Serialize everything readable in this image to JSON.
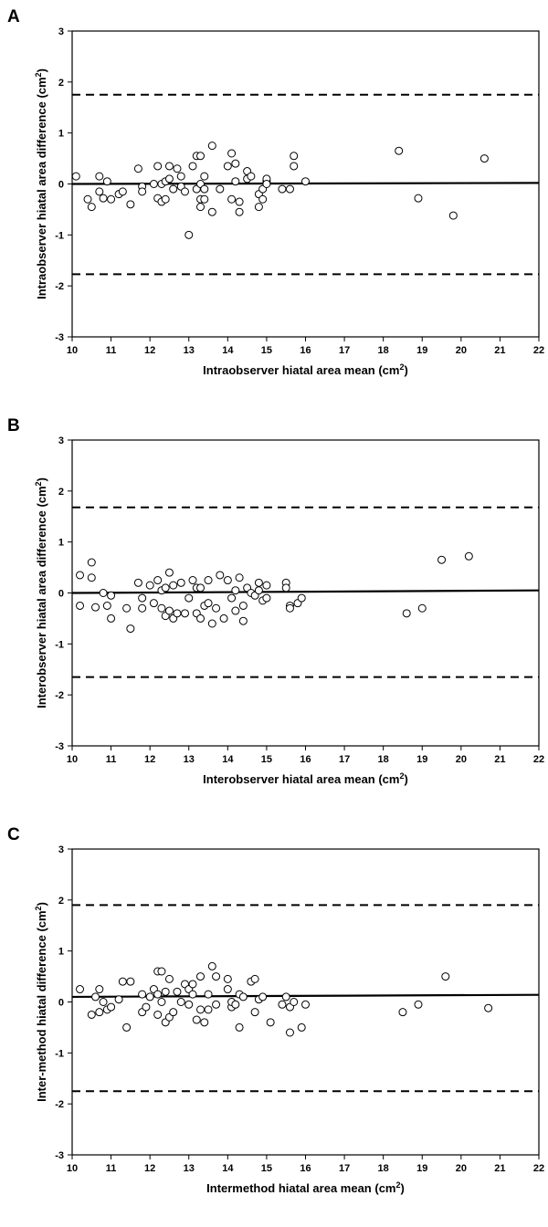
{
  "chart_data": [
    {
      "type": "scatter",
      "panel_label": "A",
      "xlabel": "Intraobserver hiatal area mean (cm",
      "ylabel": "Intraobserver hiatal area difference (cm",
      "unit_sup": "2",
      "unit_close": ")",
      "xlim": [
        10,
        22
      ],
      "ylim": [
        -3,
        3
      ],
      "x_ticks": [
        "10",
        "11",
        "12",
        "13",
        "14",
        "15",
        "16",
        "17",
        "18",
        "19",
        "20",
        "21",
        "22"
      ],
      "y_ticks": [
        "3",
        "2",
        "1",
        "0",
        "-1",
        "-2",
        "-3"
      ],
      "mean_line": [
        [
          10,
          0.0
        ],
        [
          22,
          0.02
        ]
      ],
      "upper_limit": 1.75,
      "lower_limit": -1.77,
      "points": [
        [
          10.1,
          0.15
        ],
        [
          10.4,
          -0.3
        ],
        [
          10.5,
          -0.45
        ],
        [
          10.7,
          -0.15
        ],
        [
          10.7,
          0.15
        ],
        [
          10.8,
          -0.28
        ],
        [
          10.9,
          0.05
        ],
        [
          11.0,
          -0.3
        ],
        [
          11.2,
          -0.2
        ],
        [
          11.3,
          -0.15
        ],
        [
          11.5,
          -0.4
        ],
        [
          11.7,
          0.3
        ],
        [
          11.8,
          -0.05
        ],
        [
          11.8,
          -0.15
        ],
        [
          12.1,
          0.0
        ],
        [
          12.2,
          0.35
        ],
        [
          12.2,
          -0.28
        ],
        [
          12.3,
          -0.35
        ],
        [
          12.3,
          0.0
        ],
        [
          12.4,
          0.05
        ],
        [
          12.4,
          -0.3
        ],
        [
          12.5,
          0.35
        ],
        [
          12.5,
          0.1
        ],
        [
          12.6,
          -0.1
        ],
        [
          12.7,
          0.3
        ],
        [
          12.8,
          -0.05
        ],
        [
          12.8,
          0.15
        ],
        [
          12.9,
          -0.15
        ],
        [
          13.0,
          -1.0
        ],
        [
          13.1,
          0.35
        ],
        [
          13.2,
          0.55
        ],
        [
          13.2,
          -0.1
        ],
        [
          13.3,
          0.55
        ],
        [
          13.3,
          -0.3
        ],
        [
          13.3,
          -0.45
        ],
        [
          13.3,
          0.0
        ],
        [
          13.4,
          0.15
        ],
        [
          13.4,
          -0.3
        ],
        [
          13.4,
          -0.1
        ],
        [
          13.6,
          0.75
        ],
        [
          13.6,
          -0.55
        ],
        [
          13.8,
          -0.1
        ],
        [
          14.0,
          0.35
        ],
        [
          14.1,
          0.6
        ],
        [
          14.1,
          -0.3
        ],
        [
          14.2,
          0.05
        ],
        [
          14.2,
          0.4
        ],
        [
          14.3,
          -0.35
        ],
        [
          14.3,
          -0.55
        ],
        [
          14.5,
          0.1
        ],
        [
          14.5,
          0.25
        ],
        [
          14.6,
          0.15
        ],
        [
          14.8,
          -0.2
        ],
        [
          14.8,
          -0.45
        ],
        [
          14.9,
          -0.3
        ],
        [
          14.9,
          -0.1
        ],
        [
          15.0,
          0.05
        ],
        [
          15.0,
          0.1
        ],
        [
          15.0,
          0.0
        ],
        [
          15.4,
          -0.1
        ],
        [
          15.6,
          -0.1
        ],
        [
          15.7,
          0.35
        ],
        [
          15.7,
          0.55
        ],
        [
          16.0,
          0.05
        ],
        [
          18.4,
          0.65
        ],
        [
          18.9,
          -0.28
        ],
        [
          19.8,
          -0.62
        ],
        [
          20.6,
          0.5
        ]
      ]
    },
    {
      "type": "scatter",
      "panel_label": "B",
      "xlabel": "Interobserver hiatal area mean (cm",
      "ylabel": "Interobserver hiatal area difference (cm",
      "unit_sup": "2",
      "unit_close": ")",
      "xlim": [
        10,
        22
      ],
      "ylim": [
        -3,
        3
      ],
      "x_ticks": [
        "10",
        "11",
        "12",
        "13",
        "14",
        "15",
        "16",
        "17",
        "18",
        "19",
        "20",
        "21",
        "22"
      ],
      "y_ticks": [
        "3",
        "2",
        "1",
        "0",
        "-1",
        "-2",
        "-3"
      ],
      "mean_line": [
        [
          10,
          0.0
        ],
        [
          22,
          0.05
        ]
      ],
      "upper_limit": 1.68,
      "lower_limit": -1.65,
      "points": [
        [
          10.2,
          0.35
        ],
        [
          10.2,
          -0.25
        ],
        [
          10.5,
          0.3
        ],
        [
          10.5,
          0.6
        ],
        [
          10.6,
          -0.28
        ],
        [
          10.8,
          0.0
        ],
        [
          10.9,
          -0.25
        ],
        [
          11.0,
          -0.5
        ],
        [
          11.0,
          -0.05
        ],
        [
          11.4,
          -0.3
        ],
        [
          11.5,
          -0.7
        ],
        [
          11.7,
          0.2
        ],
        [
          11.8,
          -0.1
        ],
        [
          11.8,
          -0.3
        ],
        [
          12.0,
          0.15
        ],
        [
          12.1,
          -0.2
        ],
        [
          12.2,
          0.25
        ],
        [
          12.3,
          0.05
        ],
        [
          12.3,
          -0.3
        ],
        [
          12.4,
          -0.45
        ],
        [
          12.4,
          0.1
        ],
        [
          12.5,
          0.4
        ],
        [
          12.5,
          -0.35
        ],
        [
          12.6,
          -0.5
        ],
        [
          12.6,
          0.15
        ],
        [
          12.7,
          -0.4
        ],
        [
          12.8,
          0.2
        ],
        [
          12.9,
          -0.4
        ],
        [
          13.0,
          -0.1
        ],
        [
          13.1,
          0.25
        ],
        [
          13.2,
          -0.4
        ],
        [
          13.2,
          0.1
        ],
        [
          13.3,
          0.1
        ],
        [
          13.3,
          -0.5
        ],
        [
          13.4,
          -0.25
        ],
        [
          13.5,
          -0.2
        ],
        [
          13.5,
          0.25
        ],
        [
          13.6,
          -0.6
        ],
        [
          13.7,
          -0.3
        ],
        [
          13.8,
          0.35
        ],
        [
          13.9,
          -0.5
        ],
        [
          14.0,
          0.25
        ],
        [
          14.1,
          -0.1
        ],
        [
          14.2,
          0.05
        ],
        [
          14.2,
          -0.35
        ],
        [
          14.3,
          0.3
        ],
        [
          14.4,
          -0.25
        ],
        [
          14.4,
          -0.55
        ],
        [
          14.5,
          0.1
        ],
        [
          14.6,
          0.0
        ],
        [
          14.7,
          -0.05
        ],
        [
          14.8,
          0.2
        ],
        [
          14.8,
          0.05
        ],
        [
          14.9,
          -0.15
        ],
        [
          15.0,
          0.15
        ],
        [
          15.0,
          -0.1
        ],
        [
          15.5,
          0.2
        ],
        [
          15.5,
          0.1
        ],
        [
          15.6,
          -0.25
        ],
        [
          15.6,
          -0.3
        ],
        [
          15.8,
          -0.2
        ],
        [
          15.9,
          -0.1
        ],
        [
          18.6,
          -0.4
        ],
        [
          19.0,
          -0.3
        ],
        [
          19.5,
          0.65
        ],
        [
          20.2,
          0.72
        ]
      ]
    },
    {
      "type": "scatter",
      "panel_label": "C",
      "xlabel": "Intermethod hiatal area mean (cm",
      "ylabel": "Inter-method  hiatal difference (cm",
      "unit_sup": "2",
      "unit_close": ")",
      "xlim": [
        10,
        22
      ],
      "ylim": [
        -3,
        3
      ],
      "x_ticks": [
        "10",
        "11",
        "12",
        "13",
        "14",
        "15",
        "16",
        "17",
        "18",
        "19",
        "20",
        "21",
        "22"
      ],
      "y_ticks": [
        "3",
        "2",
        "1",
        "0",
        "-1",
        "-2",
        "-3"
      ],
      "mean_line": [
        [
          10,
          0.1
        ],
        [
          22,
          0.14
        ]
      ],
      "upper_limit": 1.9,
      "lower_limit": -1.75,
      "points": [
        [
          10.2,
          0.25
        ],
        [
          10.5,
          -0.25
        ],
        [
          10.6,
          0.1
        ],
        [
          10.7,
          0.25
        ],
        [
          10.7,
          -0.2
        ],
        [
          10.8,
          0.0
        ],
        [
          10.9,
          -0.15
        ],
        [
          11.0,
          -0.1
        ],
        [
          11.2,
          0.05
        ],
        [
          11.3,
          0.4
        ],
        [
          11.4,
          -0.5
        ],
        [
          11.5,
          0.4
        ],
        [
          11.8,
          -0.2
        ],
        [
          11.8,
          0.15
        ],
        [
          11.9,
          -0.1
        ],
        [
          12.0,
          0.1
        ],
        [
          12.1,
          0.25
        ],
        [
          12.2,
          0.6
        ],
        [
          12.2,
          0.15
        ],
        [
          12.2,
          -0.25
        ],
        [
          12.3,
          0.6
        ],
        [
          12.3,
          0.0
        ],
        [
          12.4,
          -0.4
        ],
        [
          12.4,
          0.2
        ],
        [
          12.5,
          0.45
        ],
        [
          12.5,
          -0.3
        ],
        [
          12.6,
          -0.2
        ],
        [
          12.7,
          0.2
        ],
        [
          12.8,
          0.0
        ],
        [
          12.9,
          0.35
        ],
        [
          13.0,
          0.25
        ],
        [
          13.0,
          -0.05
        ],
        [
          13.1,
          0.35
        ],
        [
          13.1,
          0.15
        ],
        [
          13.2,
          -0.35
        ],
        [
          13.3,
          0.5
        ],
        [
          13.3,
          -0.15
        ],
        [
          13.4,
          -0.4
        ],
        [
          13.5,
          0.15
        ],
        [
          13.5,
          -0.15
        ],
        [
          13.6,
          0.7
        ],
        [
          13.7,
          0.5
        ],
        [
          13.7,
          -0.05
        ],
        [
          14.0,
          0.25
        ],
        [
          14.0,
          0.45
        ],
        [
          14.1,
          -0.1
        ],
        [
          14.1,
          0.0
        ],
        [
          14.2,
          -0.05
        ],
        [
          14.3,
          0.15
        ],
        [
          14.3,
          -0.5
        ],
        [
          14.4,
          0.1
        ],
        [
          14.6,
          0.4
        ],
        [
          14.7,
          0.45
        ],
        [
          14.7,
          -0.2
        ],
        [
          14.8,
          0.05
        ],
        [
          14.9,
          0.1
        ],
        [
          15.1,
          -0.4
        ],
        [
          15.4,
          -0.05
        ],
        [
          15.5,
          0.1
        ],
        [
          15.6,
          -0.6
        ],
        [
          15.6,
          -0.1
        ],
        [
          15.7,
          0.0
        ],
        [
          15.9,
          -0.5
        ],
        [
          16.0,
          -0.05
        ],
        [
          18.5,
          -0.2
        ],
        [
          18.9,
          -0.05
        ],
        [
          19.6,
          0.5
        ],
        [
          20.7,
          -0.12
        ]
      ]
    }
  ]
}
